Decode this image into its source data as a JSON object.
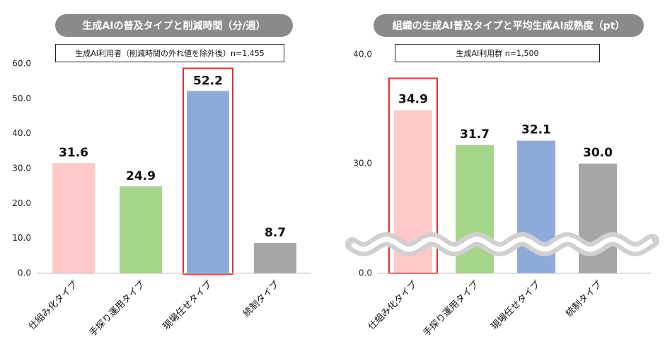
{
  "chart_data": [
    {
      "type": "bar",
      "title": "生成AIの普及タイプと削減時間（分/週）",
      "note": "生成AI利用者（削減時間の外れ値を除外後）n=1,455",
      "categories": [
        "仕組み化タイプ",
        "手探り運用タイプ",
        "現場任せタイプ",
        "統制タイプ"
      ],
      "values": [
        31.6,
        24.9,
        52.2,
        8.7
      ],
      "value_labels": [
        "31.6",
        "24.9",
        "52.2",
        "8.7"
      ],
      "ylim": [
        0,
        60
      ],
      "yticks": [
        "0.0",
        "10.0",
        "20.0",
        "30.0",
        "40.0",
        "50.0",
        "60.0"
      ],
      "grid": false,
      "highlight_index": 2,
      "colors": [
        "#ffc9c9",
        "#a6d68a",
        "#8eaadb",
        "#a6a6a6"
      ],
      "highlight_color": "#e03030"
    },
    {
      "type": "bar",
      "title": "組織の生成AI普及タイプと平均生成AI成熟度（pt）",
      "note": "生成AI利用群 n=1,500",
      "categories": [
        "仕組み化タイプ",
        "手探り運用タイプ",
        "現場任せタイプ",
        "統制タイプ"
      ],
      "values": [
        34.9,
        31.7,
        32.1,
        30.0
      ],
      "value_labels": [
        "34.9",
        "31.7",
        "32.1",
        "30.0"
      ],
      "axis_break": true,
      "yticks": [
        "0.0",
        "30.0",
        "40.0"
      ],
      "grid": false,
      "highlight_index": 0,
      "colors": [
        "#ffc9c9",
        "#a6d68a",
        "#8eaadb",
        "#a6a6a6"
      ],
      "highlight_color": "#e03030"
    }
  ]
}
